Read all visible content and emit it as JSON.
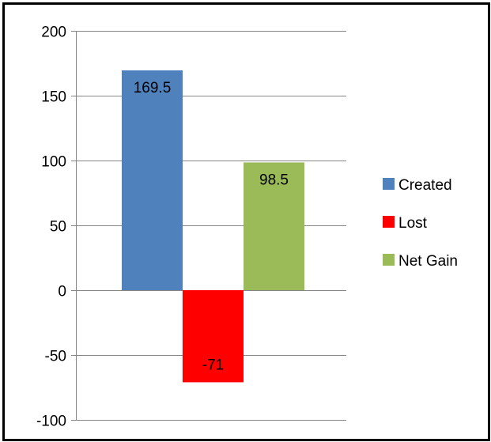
{
  "chart_data": {
    "type": "bar",
    "categories": [
      ""
    ],
    "series": [
      {
        "name": "Created",
        "values": [
          169.5
        ],
        "color": "#4F81BD",
        "label": "169.5"
      },
      {
        "name": "Lost",
        "values": [
          -71
        ],
        "color": "#FF0000",
        "label": "-71"
      },
      {
        "name": "Net Gain",
        "values": [
          98.5
        ],
        "color": "#9BBB59",
        "label": "98.5"
      }
    ],
    "title": "",
    "xlabel": "",
    "ylabel": "",
    "ylim": [
      -100,
      200
    ],
    "yticks": [
      "-100",
      "-50",
      "0",
      "50",
      "100",
      "150",
      "200"
    ],
    "grid": true,
    "legend": "right"
  }
}
